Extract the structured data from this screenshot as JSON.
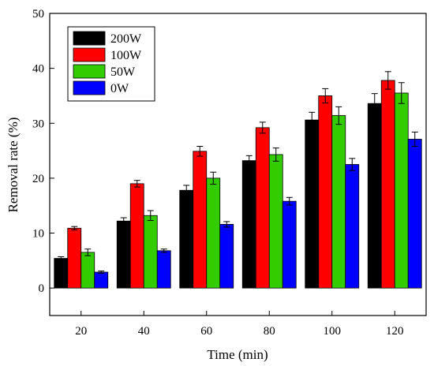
{
  "chart_data": {
    "type": "bar",
    "title": "",
    "xlabel": "Time (min)",
    "ylabel": "Removal rate (%)",
    "ylim": [
      -5,
      50
    ],
    "yticks": [
      0,
      10,
      20,
      30,
      40,
      50
    ],
    "categories": [
      "20",
      "40",
      "60",
      "80",
      "100",
      "120"
    ],
    "series": [
      {
        "name": "200W",
        "color": "#000000",
        "values": [
          5.4,
          12.2,
          17.8,
          23.2,
          30.6,
          33.6
        ],
        "errors": [
          0.3,
          0.6,
          0.9,
          0.9,
          1.4,
          1.8
        ]
      },
      {
        "name": "100W",
        "color": "#ff0000",
        "values": [
          10.9,
          19.0,
          24.9,
          29.2,
          35.0,
          37.8
        ],
        "errors": [
          0.3,
          0.6,
          0.9,
          1.0,
          1.3,
          1.6
        ]
      },
      {
        "name": "50W",
        "color": "#33cc00",
        "values": [
          6.5,
          13.2,
          20.0,
          24.3,
          31.4,
          35.5
        ],
        "errors": [
          0.6,
          0.9,
          1.1,
          1.2,
          1.6,
          1.9
        ]
      },
      {
        "name": "0W",
        "color": "#0000ff",
        "values": [
          2.9,
          6.8,
          11.6,
          15.8,
          22.5,
          27.1
        ],
        "errors": [
          0.2,
          0.3,
          0.5,
          0.7,
          1.1,
          1.3
        ]
      }
    ],
    "legend_position": "top-left",
    "grid": false
  }
}
